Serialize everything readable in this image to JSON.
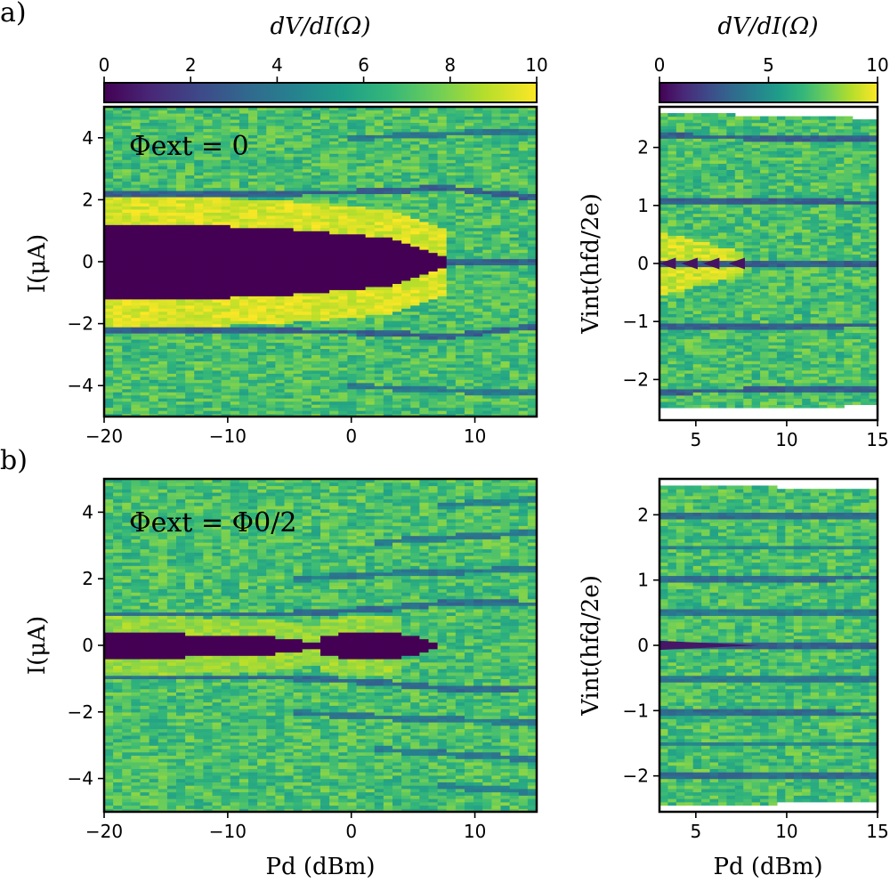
{
  "figure": {
    "panel_labels": [
      "a)",
      "b)"
    ],
    "colormap": {
      "name": "viridis",
      "stops": [
        "#440154",
        "#482878",
        "#3e4989",
        "#31688e",
        "#26828e",
        "#1f9e89",
        "#35b779",
        "#6ece58",
        "#b5de2b",
        "#fde725"
      ]
    }
  },
  "chart_data": [
    {
      "id": "a_left",
      "panel": "a)",
      "type": "heatmap",
      "title": "",
      "annotation": "Φext = 0",
      "xlabel": "Pd (dBm)",
      "ylabel": "I(μA)",
      "xlim": [
        -20,
        15
      ],
      "ylim": [
        -5,
        5
      ],
      "xticks": [
        -20,
        -10,
        0,
        10
      ],
      "xtick_labels": [
        "−20",
        "−10",
        "0",
        "10"
      ],
      "yticks": [
        -4,
        -2,
        0,
        2,
        4
      ],
      "ytick_labels": [
        "−4",
        "−2",
        "0",
        "2",
        "4"
      ],
      "show_xtick_labels": true,
      "colorbar": {
        "label": "dV/dI(Ω)",
        "range": [
          0,
          10
        ],
        "ticks": [
          0,
          2,
          4,
          6,
          8,
          10
        ],
        "tick_labels": [
          "0",
          "2",
          "4",
          "6",
          "8",
          "10"
        ]
      },
      "features": {
        "superconducting_region": {
          "half_width_at_left_uA": 1.25,
          "edge_points": [
            [
              -20,
              1.25
            ],
            [
              -10,
              1.15
            ],
            [
              -5,
              1.05
            ],
            [
              0,
              0.9
            ],
            [
              3,
              0.75
            ],
            [
              5,
              0.55
            ],
            [
              7,
              0.25
            ],
            [
              8.5,
              0.05
            ]
          ],
          "value": 0
        },
        "high_edge_band": {
          "width_uA": 0.9,
          "fade_out_dBm": 8,
          "value": 10
        },
        "steps": [
          {
            "points": [
              [
                -20,
                2.2
              ],
              [
                0,
                2.25
              ],
              [
                8,
                2.4
              ],
              [
                12,
                2.2
              ],
              [
                15,
                2.1
              ]
            ],
            "value": 3
          },
          {
            "points": [
              [
                -20,
                -2.2
              ],
              [
                0,
                -2.25
              ],
              [
                8,
                -2.4
              ],
              [
                12,
                -2.2
              ],
              [
                15,
                -2.05
              ]
            ],
            "value": 3
          },
          {
            "points": [
              [
                0,
                4.0
              ],
              [
                8,
                4.15
              ],
              [
                15,
                4.2
              ]
            ],
            "value": 4
          },
          {
            "points": [
              [
                0,
                -4.0
              ],
              [
                8,
                -4.15
              ],
              [
                15,
                -4.2
              ]
            ],
            "value": 4
          },
          {
            "points": [
              [
                8,
                0
              ],
              [
                15,
                0
              ]
            ],
            "value": 3
          }
        ],
        "background_value": 7
      }
    },
    {
      "id": "a_right",
      "panel": "a)",
      "type": "heatmap",
      "title": "",
      "xlabel": "",
      "ylabel": "Vint(hfd/2e)",
      "xlim": [
        3,
        15
      ],
      "ylim": [
        -2.7,
        2.7
      ],
      "xticks": [
        5,
        10,
        15
      ],
      "xtick_labels": [
        "5",
        "10",
        "15"
      ],
      "yticks": [
        -2,
        -1,
        0,
        1,
        2
      ],
      "ytick_labels": [
        "−2",
        "−1",
        "0",
        "1",
        "2"
      ],
      "show_xtick_labels": true,
      "colorbar": {
        "label": "dV/dI(Ω)",
        "range": [
          0,
          10
        ],
        "ticks": [
          0,
          5,
          10
        ],
        "tick_labels": [
          "0",
          "5",
          "10"
        ]
      },
      "features": {
        "data_envelope": {
          "top": [
            [
              3,
              2.6
            ],
            [
              15,
              2.5
            ]
          ],
          "bottom": [
            [
              3,
              -2.5
            ],
            [
              15,
              -2.45
            ]
          ]
        },
        "yellow_blob": {
          "x_end": 7.5,
          "half_height": 0.55,
          "value": 10
        },
        "zero_step_spikes": [
          3,
          4.2,
          5.4,
          6.8
        ],
        "steps": [
          {
            "points": [
              [
                3,
                2.2
              ],
              [
                15,
                2.15
              ]
            ],
            "value": 3
          },
          {
            "points": [
              [
                3,
                1.1
              ],
              [
                15,
                1.05
              ]
            ],
            "value": 3
          },
          {
            "points": [
              [
                3,
                0
              ],
              [
                15,
                0
              ]
            ],
            "value": 3
          },
          {
            "points": [
              [
                3,
                -1.1
              ],
              [
                15,
                -1.05
              ]
            ],
            "value": 3
          },
          {
            "points": [
              [
                3,
                -2.2
              ],
              [
                15,
                -2.15
              ]
            ],
            "value": 3
          }
        ],
        "background_value": 7
      }
    },
    {
      "id": "b_left",
      "panel": "b)",
      "type": "heatmap",
      "title": "",
      "annotation": "Φext = Φ0/2",
      "xlabel": "Pd (dBm)",
      "ylabel": "I(μA)",
      "xlim": [
        -20,
        15
      ],
      "ylim": [
        -5,
        5
      ],
      "xticks": [
        -20,
        -10,
        0,
        10
      ],
      "xtick_labels": [
        "−20",
        "−10",
        "0",
        "10"
      ],
      "yticks": [
        -4,
        -2,
        0,
        2,
        4
      ],
      "ytick_labels": [
        "−4",
        "−2",
        "0",
        "2",
        "4"
      ],
      "show_xtick_labels": true,
      "features": {
        "superconducting_region": {
          "edge_points": [
            [
              -20,
              0.4
            ],
            [
              -10,
              0.32
            ],
            [
              -4,
              0.2
            ],
            [
              -3,
              0.06
            ],
            [
              -2,
              0.3
            ],
            [
              0,
              0.42
            ],
            [
              2,
              0.45
            ],
            [
              3.5,
              0.4
            ],
            [
              5,
              0.3
            ],
            [
              6,
              0.2
            ],
            [
              7,
              0.03
            ]
          ],
          "value": 0
        },
        "high_edge_band": {
          "width_uA": 0.5,
          "fade_out_dBm": 4,
          "value": 9
        },
        "steps": [
          {
            "points": [
              [
                -20,
                0.95
              ],
              [
                -5,
                0.95
              ],
              [
                2,
                1.1
              ],
              [
                8,
                1.3
              ],
              [
                15,
                1.25
              ]
            ],
            "value": 3.5
          },
          {
            "points": [
              [
                -20,
                -0.95
              ],
              [
                -5,
                -0.95
              ],
              [
                2,
                -1.1
              ],
              [
                8,
                -1.3
              ],
              [
                15,
                -1.25
              ]
            ],
            "value": 3.5
          },
          {
            "points": [
              [
                -5,
                2.0
              ],
              [
                5,
                2.2
              ],
              [
                15,
                2.3
              ]
            ],
            "value": 4
          },
          {
            "points": [
              [
                -5,
                -2.0
              ],
              [
                5,
                -2.2
              ],
              [
                15,
                -2.3
              ]
            ],
            "value": 4
          },
          {
            "points": [
              [
                2,
                3.1
              ],
              [
                10,
                3.3
              ],
              [
                15,
                3.4
              ]
            ],
            "value": 4
          },
          {
            "points": [
              [
                2,
                -3.1
              ],
              [
                10,
                -3.3
              ],
              [
                15,
                -3.4
              ]
            ],
            "value": 4
          },
          {
            "points": [
              [
                7,
                4.2
              ],
              [
                15,
                4.4
              ]
            ],
            "value": 4.5
          },
          {
            "points": [
              [
                7,
                -4.2
              ],
              [
                15,
                -4.4
              ]
            ],
            "value": 4.5
          }
        ],
        "background_value": 7
      }
    },
    {
      "id": "b_right",
      "panel": "b)",
      "type": "heatmap",
      "title": "",
      "xlabel": "Pd (dBm)",
      "ylabel": "Vint(hfd/2e)",
      "xlim": [
        3,
        15
      ],
      "ylim": [
        -2.55,
        2.55
      ],
      "xticks": [
        5,
        10,
        15
      ],
      "xtick_labels": [
        "5",
        "10",
        "15"
      ],
      "yticks": [
        -2,
        -1,
        0,
        1,
        2
      ],
      "ytick_labels": [
        "−2",
        "−1",
        "0",
        "1",
        "2"
      ],
      "show_xtick_labels": true,
      "features": {
        "data_envelope": {
          "top": [
            [
              3,
              2.45
            ],
            [
              15,
              2.4
            ]
          ],
          "bottom": [
            [
              3,
              -2.45
            ],
            [
              15,
              -2.4
            ]
          ]
        },
        "zero_wedge_end": 8.5,
        "steps": [
          {
            "points": [
              [
                3,
                2.0
              ],
              [
                15,
                2.0
              ]
            ],
            "value": 3.5
          },
          {
            "points": [
              [
                3,
                1.5
              ],
              [
                15,
                1.5
              ]
            ],
            "value": 4.5
          },
          {
            "points": [
              [
                3,
                1.0
              ],
              [
                15,
                1.05
              ]
            ],
            "value": 3.5
          },
          {
            "points": [
              [
                3,
                0.5
              ],
              [
                15,
                0.5
              ]
            ],
            "value": 4
          },
          {
            "points": [
              [
                3,
                0
              ],
              [
                15,
                0
              ]
            ],
            "value": 3
          },
          {
            "points": [
              [
                3,
                -0.5
              ],
              [
                15,
                -0.5
              ]
            ],
            "value": 4
          },
          {
            "points": [
              [
                3,
                -1.0
              ],
              [
                15,
                -1.05
              ]
            ],
            "value": 3.5
          },
          {
            "points": [
              [
                3,
                -1.5
              ],
              [
                15,
                -1.5
              ]
            ],
            "value": 4.5
          },
          {
            "points": [
              [
                3,
                -2.0
              ],
              [
                15,
                -2.0
              ]
            ],
            "value": 3.5
          }
        ],
        "background_value": 7
      }
    }
  ]
}
